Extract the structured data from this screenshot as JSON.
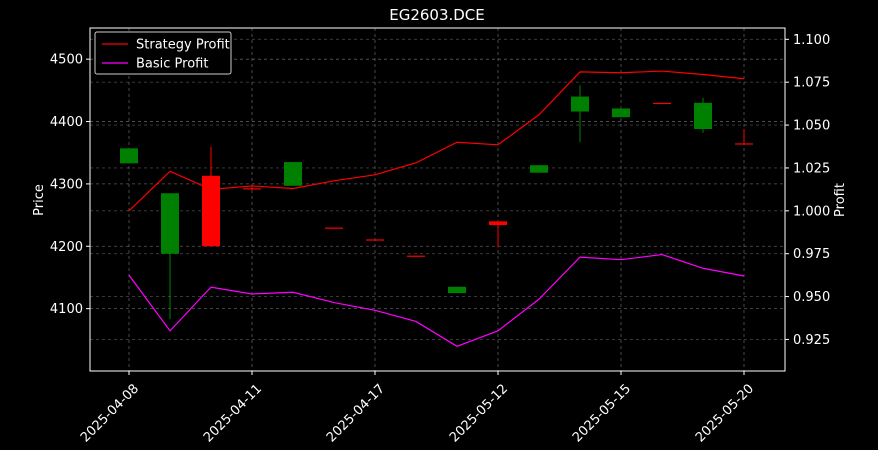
{
  "chart_data": {
    "type": "candlestick",
    "title": "EG2603.DCE",
    "ylabel_left": "Price",
    "ylabel_right": "Profit",
    "grid": true,
    "legend_position": "top-left",
    "x_tick_labels": [
      "2025-04-08",
      "2025-04-11",
      "2025-04-17",
      "2025-05-12",
      "2025-05-15",
      "2025-05-20"
    ],
    "x_tick_indices": [
      0,
      3,
      6,
      9,
      12,
      15
    ],
    "y_left_ticks": [
      4100,
      4200,
      4300,
      4400,
      4500
    ],
    "y_left_range": [
      4000,
      4550
    ],
    "y_right_ticks": [
      "0.925",
      "0.950",
      "0.975",
      "1.000",
      "1.025",
      "1.050",
      "1.075",
      "1.100"
    ],
    "y_right_range": [
      0.9066,
      1.1066
    ],
    "candles": [
      {
        "open": 4357,
        "high": 4357,
        "low": 4333,
        "close": 4333
      },
      {
        "open": 4285,
        "high": 4285,
        "low": 4083,
        "close": 4188
      },
      {
        "open": 4200,
        "high": 4360,
        "low": 4200,
        "close": 4313
      },
      {
        "open": 4293,
        "high": 4296,
        "low": 4290,
        "close": 4293
      },
      {
        "open": 4335,
        "high": 4335,
        "low": 4297,
        "close": 4297
      },
      {
        "open": 4230,
        "high": 4230,
        "low": 4230,
        "close": 4230
      },
      {
        "open": 4211,
        "high": 4211,
        "low": 4211,
        "close": 4211
      },
      {
        "open": 4185,
        "high": 4185,
        "low": 4185,
        "close": 4185
      },
      {
        "open": 4135,
        "high": 4135,
        "low": 4125,
        "close": 4125
      },
      {
        "open": 4234,
        "high": 4240,
        "low": 4198,
        "close": 4240
      },
      {
        "open": 4330,
        "high": 4330,
        "low": 4318,
        "close": 4318
      },
      {
        "open": 4440,
        "high": 4458,
        "low": 4367,
        "close": 4416
      },
      {
        "open": 4421,
        "high": 4421,
        "low": 4407,
        "close": 4407
      },
      {
        "open": 4430,
        "high": 4430,
        "low": 4430,
        "close": 4430
      },
      {
        "open": 4430,
        "high": 4438,
        "low": 4382,
        "close": 4388
      },
      {
        "open": 4365,
        "high": 4388,
        "low": 4365,
        "close": 4365
      }
    ],
    "series": [
      {
        "name": "Strategy Profit",
        "color": "#ff0000",
        "values": [
          1.0,
          1.023,
          1.0125,
          1.0145,
          1.013,
          1.0175,
          1.021,
          1.028,
          1.04,
          1.0385,
          1.056,
          1.081,
          1.0805,
          1.0815,
          1.0795,
          1.077
        ]
      },
      {
        "name": "Basic Profit",
        "color": "#ff00ff",
        "values": [
          0.9625,
          0.93,
          0.9555,
          0.9515,
          0.9525,
          0.9465,
          0.942,
          0.9355,
          0.921,
          0.93,
          0.9485,
          0.973,
          0.9715,
          0.9745,
          0.9665,
          0.962
        ]
      }
    ],
    "up_color": "#ff0000",
    "down_color": "#008000"
  }
}
